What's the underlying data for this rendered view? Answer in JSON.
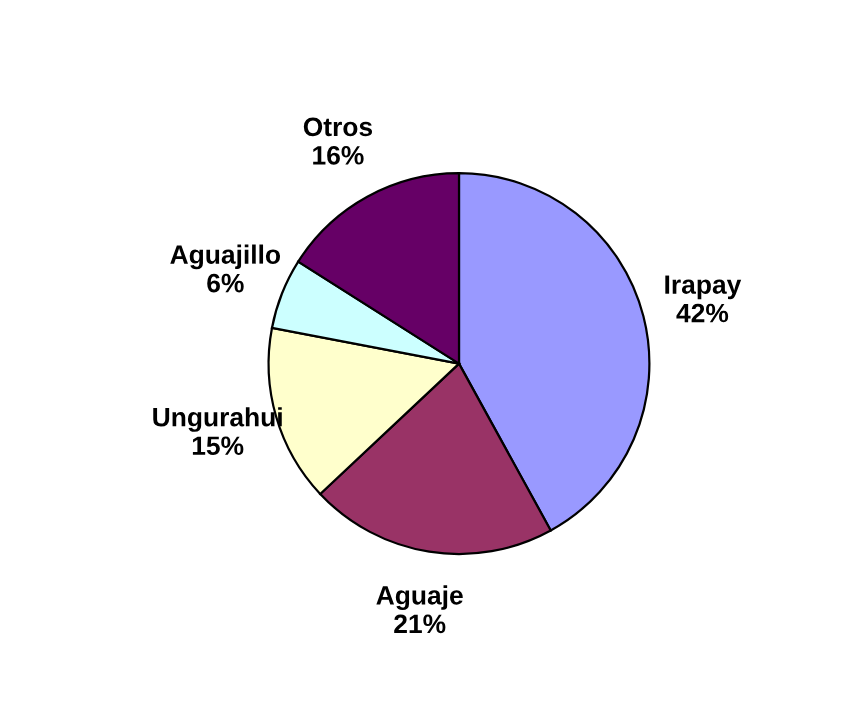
{
  "chart_data": {
    "type": "pie",
    "categories": [
      "Irapay",
      "Aguaje",
      "Ungurahui",
      "Aguajillo",
      "Otros"
    ],
    "values": [
      42,
      21,
      15,
      6,
      16
    ],
    "value_labels": [
      "42%",
      "21%",
      "15%",
      "6%",
      "16%"
    ],
    "colors": [
      "#9999ff",
      "#993366",
      "#ffffcc",
      "#ccffff",
      "#660066"
    ]
  }
}
